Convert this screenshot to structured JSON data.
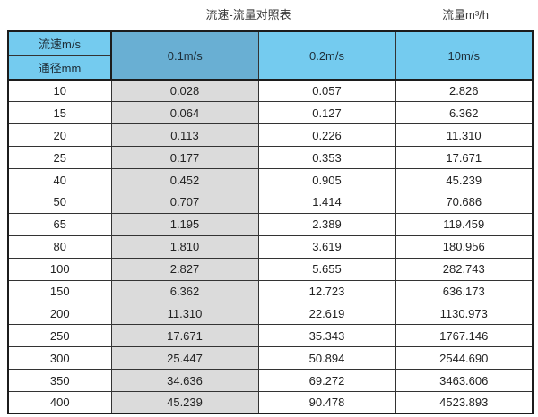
{
  "page": {
    "title_left": "流速-流量对照表",
    "title_right": "流量m³/h"
  },
  "table": {
    "corner": {
      "top": "流速m/s",
      "bottom": "通径mm"
    },
    "columns": [
      "0.1m/s",
      "0.2m/s",
      "10m/s"
    ],
    "rows": [
      {
        "diameter": "10",
        "values": [
          "0.028",
          "0.057",
          "2.826"
        ]
      },
      {
        "diameter": "15",
        "values": [
          "0.064",
          "0.127",
          "6.362"
        ]
      },
      {
        "diameter": "20",
        "values": [
          "0.113",
          "0.226",
          "11.310"
        ]
      },
      {
        "diameter": "25",
        "values": [
          "0.177",
          "0.353",
          "17.671"
        ]
      },
      {
        "diameter": "40",
        "values": [
          "0.452",
          "0.905",
          "45.239"
        ]
      },
      {
        "diameter": "50",
        "values": [
          "0.707",
          "1.414",
          "70.686"
        ]
      },
      {
        "diameter": "65",
        "values": [
          "1.195",
          "2.389",
          "119.459"
        ]
      },
      {
        "diameter": "80",
        "values": [
          "1.810",
          "3.619",
          "180.956"
        ]
      },
      {
        "diameter": "100",
        "values": [
          "2.827",
          "5.655",
          "282.743"
        ]
      },
      {
        "diameter": "150",
        "values": [
          "6.362",
          "12.723",
          "636.173"
        ]
      },
      {
        "diameter": "200",
        "values": [
          "11.310",
          "22.619",
          "1130.973"
        ]
      },
      {
        "diameter": "250",
        "values": [
          "17.671",
          "35.343",
          "1767.146"
        ]
      },
      {
        "diameter": "300",
        "values": [
          "25.447",
          "50.894",
          "2544.690"
        ]
      },
      {
        "diameter": "350",
        "values": [
          "34.636",
          "69.272",
          "3463.606"
        ]
      },
      {
        "diameter": "400",
        "values": [
          "45.239",
          "90.478",
          "4523.893"
        ]
      }
    ]
  },
  "colors": {
    "header_light_blue": "#74cbef",
    "header_dark_blue": "#69afd3",
    "col_gray": "#dbdbdb",
    "border_dark": "#1c1c1c"
  },
  "chart_data": {
    "type": "table",
    "title": "流速-流量对照表",
    "unit_label": "流量m³/h",
    "row_header_label": "通径mm",
    "col_header_label": "流速m/s",
    "columns": [
      "0.1m/s",
      "0.2m/s",
      "10m/s"
    ],
    "diameters_mm": [
      10,
      15,
      20,
      25,
      40,
      50,
      65,
      80,
      100,
      150,
      200,
      250,
      300,
      350,
      400
    ],
    "values": [
      [
        0.028,
        0.057,
        2.826
      ],
      [
        0.064,
        0.127,
        6.362
      ],
      [
        0.113,
        0.226,
        11.31
      ],
      [
        0.177,
        0.353,
        17.671
      ],
      [
        0.452,
        0.905,
        45.239
      ],
      [
        0.707,
        1.414,
        70.686
      ],
      [
        1.195,
        2.389,
        119.459
      ],
      [
        1.81,
        3.619,
        180.956
      ],
      [
        2.827,
        5.655,
        282.743
      ],
      [
        6.362,
        12.723,
        636.173
      ],
      [
        11.31,
        22.619,
        1130.973
      ],
      [
        17.671,
        35.343,
        1767.146
      ],
      [
        25.447,
        50.894,
        2544.69
      ],
      [
        34.636,
        69.272,
        3463.606
      ],
      [
        45.239,
        90.478,
        4523.893
      ]
    ]
  }
}
